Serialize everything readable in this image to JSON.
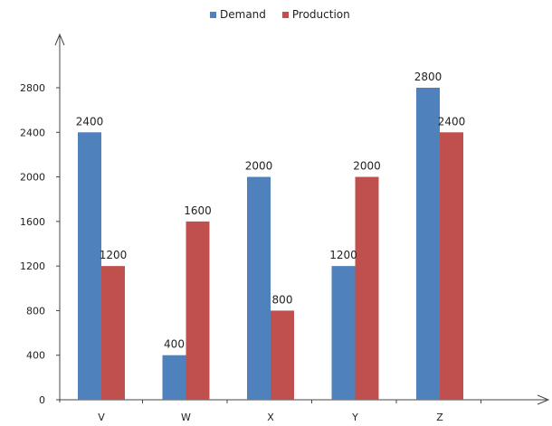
{
  "chart_data": {
    "type": "bar",
    "categories": [
      "V",
      "W",
      "X",
      "Y",
      "Z"
    ],
    "series": [
      {
        "name": "Demand",
        "values": [
          2400,
          400,
          2000,
          1200,
          2800
        ],
        "color": "#4f81bd"
      },
      {
        "name": "Production",
        "values": [
          1200,
          1600,
          800,
          2000,
          2400
        ],
        "color": "#c0504d"
      }
    ],
    "y_ticks": [
      0,
      400,
      800,
      1200,
      1600,
      2000,
      2400,
      2800
    ],
    "ylim": [
      0,
      2800
    ],
    "grid": false,
    "legend_position": "top"
  }
}
